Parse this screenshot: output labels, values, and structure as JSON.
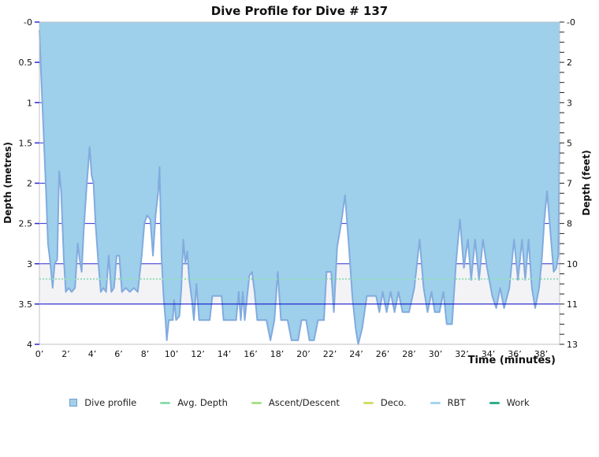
{
  "title": "Dive Profile for Dive # 137",
  "axes": {
    "left_label": "Depth (metres)",
    "right_label": "Depth (feet)",
    "x_label": "Time (minutes)"
  },
  "legend": {
    "items": [
      {
        "label": "Dive profile",
        "marker": "square",
        "color": "#a5cfe9",
        "border": "#6f9fcc"
      },
      {
        "label": "Avg. Depth",
        "marker": "line",
        "color": "#8edcb1"
      },
      {
        "label": "Ascent/Descent",
        "marker": "line",
        "color": "#a8e08a"
      },
      {
        "label": "Deco.",
        "marker": "line",
        "color": "#d3dd6b"
      },
      {
        "label": "RBT",
        "marker": "line",
        "color": "#a3d4f0"
      },
      {
        "label": "Work",
        "marker": "line",
        "color": "#2fae8b"
      }
    ]
  },
  "colors": {
    "profile_fill": "#9ecfeb",
    "profile_stroke": "#82abde",
    "grid": "#2b2bd0",
    "ref_line": "#0000c8",
    "avg_depth": "#97dfba",
    "band": "#f3f3f6",
    "frame": "#c0c0c8",
    "tick_left": "#2b2bd0",
    "tick_right": "#222222",
    "text": "#111111"
  },
  "chart_data": {
    "type": "area",
    "title": "Dive Profile for Dive # 137",
    "xlabel": "Time (minutes)",
    "ylabel_left": "Depth (metres)",
    "ylabel_right": "Depth (feet)",
    "xlim": [
      0,
      39.4
    ],
    "ylim_m": [
      0,
      4
    ],
    "grid": "horizontal-only",
    "legend_position": "bottom-center",
    "x_tick_labels": [
      "0’",
      "2’",
      "4’",
      "6’",
      "8’",
      "10’",
      "12’",
      "14’",
      "16’",
      "18’",
      "20’",
      "22’",
      "24’",
      "26’",
      "28’",
      "30’",
      "32’",
      "34’",
      "36’",
      "38’"
    ],
    "x_tick_step_min": 2,
    "y_ticks_left": {
      "values_m": [
        0,
        0.5,
        1,
        1.5,
        2,
        2.5,
        3,
        3.5,
        4
      ],
      "labels": [
        "-0",
        "0.5",
        "1",
        "1.5",
        "2",
        "2.5",
        "3",
        "3.5",
        "4"
      ]
    },
    "y_ticks_right": {
      "values_m": [
        0,
        0.5,
        1,
        1.5,
        2,
        2.5,
        3,
        3.5,
        4
      ],
      "labels": [
        "-0",
        "2",
        "3",
        "5",
        "7",
        "8",
        "10",
        "11",
        "13"
      ],
      "minor_step_m": 0.125
    },
    "gridlines_m": [
      0.5,
      1,
      1.5,
      2,
      2.5,
      3
    ],
    "band_m": [
      3.0,
      3.5
    ],
    "avg_depth_m": 3.19,
    "ref_line_m": 3.5,
    "series": [
      {
        "name": "Dive profile",
        "points": [
          [
            0,
            0.1
          ],
          [
            0.1,
            0.55
          ],
          [
            0.3,
            1.3
          ],
          [
            0.5,
            2.1
          ],
          [
            0.65,
            2.75
          ],
          [
            0.8,
            2.95
          ],
          [
            1.0,
            3.3
          ],
          [
            1.15,
            3.0
          ],
          [
            1.35,
            2.95
          ],
          [
            1.5,
            1.85
          ],
          [
            1.65,
            2.1
          ],
          [
            1.85,
            2.95
          ],
          [
            2.0,
            3.35
          ],
          [
            2.2,
            3.3
          ],
          [
            2.45,
            3.35
          ],
          [
            2.7,
            3.3
          ],
          [
            2.9,
            2.75
          ],
          [
            3.05,
            2.95
          ],
          [
            3.2,
            3.1
          ],
          [
            3.35,
            2.6
          ],
          [
            3.55,
            2.1
          ],
          [
            3.8,
            1.55
          ],
          [
            3.95,
            1.9
          ],
          [
            4.1,
            2.0
          ],
          [
            4.25,
            2.5
          ],
          [
            4.45,
            2.95
          ],
          [
            4.65,
            3.35
          ],
          [
            4.85,
            3.3
          ],
          [
            5.05,
            3.35
          ],
          [
            5.25,
            2.9
          ],
          [
            5.45,
            3.35
          ],
          [
            5.65,
            3.3
          ],
          [
            5.85,
            2.9
          ],
          [
            6.05,
            2.9
          ],
          [
            6.25,
            3.35
          ],
          [
            6.55,
            3.3
          ],
          [
            6.85,
            3.35
          ],
          [
            7.15,
            3.3
          ],
          [
            7.45,
            3.35
          ],
          [
            7.75,
            2.9
          ],
          [
            7.95,
            2.5
          ],
          [
            8.15,
            2.4
          ],
          [
            8.4,
            2.45
          ],
          [
            8.6,
            2.9
          ],
          [
            8.8,
            2.4
          ],
          [
            9.0,
            2.1
          ],
          [
            9.1,
            1.8
          ],
          [
            9.25,
            2.9
          ],
          [
            9.4,
            3.4
          ],
          [
            9.55,
            3.7
          ],
          [
            9.65,
            3.95
          ],
          [
            9.8,
            3.7
          ],
          [
            10.1,
            3.7
          ],
          [
            10.2,
            3.45
          ],
          [
            10.35,
            3.7
          ],
          [
            10.6,
            3.65
          ],
          [
            10.75,
            3.3
          ],
          [
            10.9,
            2.7
          ],
          [
            11.05,
            3.0
          ],
          [
            11.2,
            2.85
          ],
          [
            11.35,
            3.2
          ],
          [
            11.55,
            3.45
          ],
          [
            11.7,
            3.7
          ],
          [
            11.9,
            3.25
          ],
          [
            12.1,
            3.7
          ],
          [
            12.9,
            3.7
          ],
          [
            13.1,
            3.4
          ],
          [
            13.8,
            3.4
          ],
          [
            13.95,
            3.7
          ],
          [
            14.9,
            3.7
          ],
          [
            15.1,
            3.35
          ],
          [
            15.25,
            3.7
          ],
          [
            15.4,
            3.35
          ],
          [
            15.55,
            3.7
          ],
          [
            15.9,
            3.15
          ],
          [
            16.1,
            3.1
          ],
          [
            16.3,
            3.35
          ],
          [
            16.5,
            3.7
          ],
          [
            17.2,
            3.7
          ],
          [
            17.5,
            3.95
          ],
          [
            17.8,
            3.7
          ],
          [
            18.05,
            3.1
          ],
          [
            18.3,
            3.7
          ],
          [
            18.8,
            3.7
          ],
          [
            19.1,
            3.95
          ],
          [
            19.6,
            3.95
          ],
          [
            19.85,
            3.7
          ],
          [
            20.2,
            3.7
          ],
          [
            20.45,
            3.95
          ],
          [
            20.8,
            3.95
          ],
          [
            21.1,
            3.7
          ],
          [
            21.55,
            3.7
          ],
          [
            21.75,
            3.1
          ],
          [
            22.1,
            3.1
          ],
          [
            22.3,
            3.6
          ],
          [
            22.55,
            2.8
          ],
          [
            22.85,
            2.5
          ],
          [
            23.15,
            2.15
          ],
          [
            23.45,
            2.8
          ],
          [
            23.7,
            3.4
          ],
          [
            23.95,
            3.8
          ],
          [
            24.15,
            4.0
          ],
          [
            24.45,
            3.8
          ],
          [
            24.8,
            3.4
          ],
          [
            25.5,
            3.4
          ],
          [
            25.75,
            3.6
          ],
          [
            26.0,
            3.35
          ],
          [
            26.3,
            3.6
          ],
          [
            26.6,
            3.35
          ],
          [
            26.9,
            3.6
          ],
          [
            27.2,
            3.35
          ],
          [
            27.5,
            3.6
          ],
          [
            28.0,
            3.6
          ],
          [
            28.4,
            3.3
          ],
          [
            28.8,
            2.7
          ],
          [
            29.1,
            3.3
          ],
          [
            29.4,
            3.6
          ],
          [
            29.7,
            3.35
          ],
          [
            29.95,
            3.6
          ],
          [
            30.3,
            3.6
          ],
          [
            30.6,
            3.35
          ],
          [
            30.85,
            3.75
          ],
          [
            31.25,
            3.75
          ],
          [
            31.55,
            3.0
          ],
          [
            31.85,
            2.45
          ],
          [
            32.15,
            3.05
          ],
          [
            32.45,
            2.7
          ],
          [
            32.7,
            3.2
          ],
          [
            33.0,
            2.7
          ],
          [
            33.3,
            3.2
          ],
          [
            33.6,
            2.7
          ],
          [
            33.9,
            3.05
          ],
          [
            34.3,
            3.4
          ],
          [
            34.6,
            3.55
          ],
          [
            34.9,
            3.3
          ],
          [
            35.2,
            3.55
          ],
          [
            35.6,
            3.3
          ],
          [
            35.95,
            2.7
          ],
          [
            36.25,
            3.2
          ],
          [
            36.55,
            2.7
          ],
          [
            36.8,
            3.2
          ],
          [
            37.05,
            2.7
          ],
          [
            37.3,
            3.3
          ],
          [
            37.55,
            3.55
          ],
          [
            37.85,
            3.3
          ],
          [
            38.05,
            2.95
          ],
          [
            38.25,
            2.45
          ],
          [
            38.45,
            2.1
          ],
          [
            38.7,
            2.6
          ],
          [
            38.95,
            3.1
          ],
          [
            39.15,
            3.05
          ],
          [
            39.3,
            2.9
          ],
          [
            39.4,
            1.5
          ]
        ]
      }
    ]
  }
}
